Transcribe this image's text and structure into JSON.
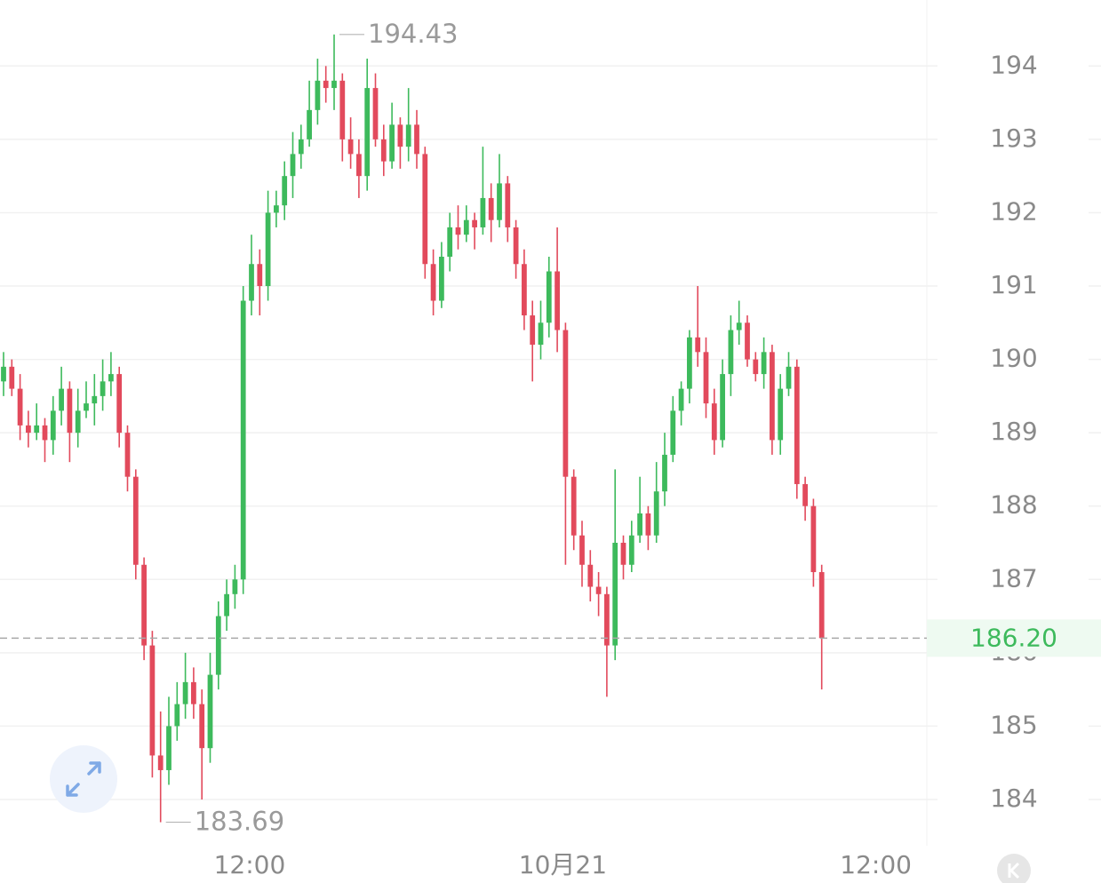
{
  "chart_data": {
    "type": "candlestick",
    "x": [
      0,
      1,
      2,
      3,
      4,
      5,
      6,
      7,
      8,
      9,
      10,
      11,
      12,
      13,
      14,
      15,
      16,
      17,
      18,
      19,
      20,
      21,
      22,
      23,
      24,
      25,
      26,
      27,
      28,
      29,
      30,
      31,
      32,
      33,
      34,
      35,
      36,
      37,
      38,
      39,
      40,
      41,
      42,
      43,
      44,
      45,
      46,
      47,
      48,
      49,
      50,
      51,
      52,
      53,
      54,
      55,
      56,
      57,
      58,
      59,
      60,
      61,
      62,
      63,
      64,
      65,
      66,
      67,
      68,
      69,
      70,
      71,
      72,
      73,
      74,
      75,
      76,
      77,
      78,
      79,
      80,
      81,
      82,
      83,
      84,
      85,
      86,
      87,
      88,
      89,
      90,
      91,
      92,
      93,
      94,
      95,
      96,
      97,
      98,
      99
    ],
    "open": [
      189.7,
      189.9,
      189.6,
      189.1,
      189.0,
      189.1,
      188.9,
      189.3,
      189.6,
      189.0,
      189.3,
      189.4,
      189.5,
      189.7,
      189.8,
      189.0,
      188.4,
      187.2,
      186.1,
      184.6,
      184.4,
      185.0,
      185.3,
      185.6,
      185.3,
      184.7,
      185.7,
      186.5,
      186.8,
      187.0,
      190.8,
      191.3,
      191.0,
      192.0,
      192.1,
      192.5,
      192.8,
      193.0,
      193.4,
      193.8,
      193.7,
      193.8,
      193.0,
      192.8,
      192.5,
      193.7,
      193.0,
      192.7,
      193.2,
      192.9,
      193.2,
      192.8,
      191.3,
      190.8,
      191.4,
      191.8,
      191.7,
      191.9,
      191.8,
      192.2,
      191.9,
      192.4,
      191.8,
      191.3,
      190.6,
      190.2,
      190.5,
      191.2,
      190.4,
      188.4,
      187.6,
      187.2,
      186.9,
      186.8,
      186.1,
      187.5,
      187.2,
      187.6,
      187.9,
      187.6,
      188.2,
      188.7,
      189.3,
      189.6,
      190.3,
      190.1,
      189.4,
      188.9,
      189.8,
      190.4,
      190.5,
      190.0,
      189.8,
      190.1,
      188.9,
      189.6,
      189.9,
      188.3,
      188.0,
      187.1
    ],
    "high": [
      190.1,
      190.0,
      189.8,
      189.3,
      189.4,
      189.2,
      189.5,
      189.9,
      189.7,
      189.6,
      189.7,
      189.8,
      190.0,
      190.1,
      189.9,
      189.1,
      188.5,
      187.3,
      186.3,
      185.2,
      185.4,
      185.6,
      186.0,
      185.8,
      185.5,
      186.0,
      186.7,
      187.0,
      187.2,
      191.0,
      191.7,
      191.5,
      192.3,
      192.3,
      192.7,
      193.1,
      193.2,
      193.8,
      194.1,
      194.0,
      194.43,
      193.9,
      193.3,
      193.0,
      194.1,
      193.9,
      193.2,
      193.5,
      193.3,
      193.7,
      193.4,
      192.9,
      191.5,
      191.6,
      192.0,
      192.1,
      192.1,
      192.0,
      192.9,
      192.4,
      192.8,
      192.5,
      191.9,
      191.5,
      190.8,
      190.8,
      191.4,
      191.8,
      190.5,
      188.5,
      187.8,
      187.4,
      187.1,
      186.9,
      188.5,
      187.6,
      187.8,
      188.4,
      188.0,
      188.6,
      189.0,
      189.5,
      189.7,
      190.4,
      191.0,
      190.3,
      189.6,
      190.0,
      190.6,
      190.8,
      190.6,
      190.1,
      190.3,
      190.2,
      189.8,
      190.1,
      190.0,
      188.4,
      188.1,
      187.2
    ],
    "low": [
      189.5,
      189.5,
      188.9,
      188.8,
      188.9,
      188.6,
      188.7,
      189.1,
      188.6,
      188.8,
      189.2,
      189.1,
      189.3,
      189.5,
      188.8,
      188.2,
      187.0,
      185.9,
      184.3,
      183.69,
      184.2,
      184.8,
      185.1,
      185.1,
      184.0,
      184.5,
      185.5,
      186.3,
      186.6,
      186.8,
      190.6,
      190.6,
      190.8,
      191.8,
      191.9,
      192.2,
      192.6,
      192.9,
      193.2,
      193.5,
      193.4,
      192.7,
      192.6,
      192.2,
      192.3,
      192.9,
      192.5,
      192.6,
      192.6,
      192.7,
      192.6,
      191.1,
      190.6,
      190.7,
      191.2,
      191.5,
      191.6,
      191.5,
      191.7,
      191.6,
      191.8,
      191.6,
      191.1,
      190.4,
      189.7,
      190.0,
      190.3,
      190.1,
      187.2,
      187.4,
      186.9,
      186.7,
      186.5,
      185.4,
      185.9,
      187.0,
      187.1,
      187.5,
      187.4,
      187.5,
      188.0,
      188.6,
      189.1,
      189.4,
      189.9,
      189.2,
      188.7,
      188.8,
      189.5,
      190.2,
      189.9,
      189.7,
      189.6,
      188.7,
      188.7,
      189.5,
      188.1,
      187.8,
      186.9,
      185.5
    ],
    "close": [
      189.9,
      189.6,
      189.1,
      189.0,
      189.1,
      188.9,
      189.3,
      189.6,
      189.0,
      189.3,
      189.4,
      189.5,
      189.7,
      189.8,
      189.0,
      188.4,
      187.2,
      186.1,
      184.6,
      184.4,
      185.0,
      185.3,
      185.6,
      185.3,
      184.7,
      185.7,
      186.5,
      186.8,
      187.0,
      190.8,
      191.3,
      191.0,
      192.0,
      192.1,
      192.5,
      192.8,
      193.0,
      193.4,
      193.8,
      193.7,
      193.8,
      193.0,
      192.8,
      192.5,
      193.7,
      193.0,
      192.7,
      193.2,
      192.9,
      193.2,
      192.8,
      191.3,
      190.8,
      191.4,
      191.8,
      191.7,
      191.9,
      191.8,
      192.2,
      191.9,
      192.4,
      191.8,
      191.3,
      190.6,
      190.2,
      190.5,
      191.2,
      190.4,
      188.4,
      187.6,
      187.2,
      186.9,
      186.8,
      186.1,
      187.5,
      187.2,
      187.6,
      187.9,
      187.6,
      188.2,
      188.7,
      189.3,
      189.6,
      190.3,
      190.1,
      189.4,
      188.9,
      189.8,
      190.4,
      190.5,
      190.0,
      189.8,
      190.1,
      188.9,
      189.6,
      189.9,
      188.3,
      188.0,
      187.1,
      186.2
    ],
    "up_color": "#3dba5c",
    "down_color": "#e24a5c",
    "xlim": [
      -0.43,
      111.72
    ],
    "xticks": [
      {
        "value": 29.78,
        "label": "12:00"
      },
      {
        "value": 67.68,
        "label": "10月21"
      },
      {
        "value": 105.55,
        "label": "12:00"
      }
    ],
    "ylim": [
      183.37,
      194.9
    ],
    "yticks": [
      184,
      185,
      186,
      187,
      188,
      189,
      190,
      191,
      192,
      193,
      194
    ],
    "grid": true,
    "max_label": {
      "value": 194.43,
      "label": "194.43"
    },
    "min_label": {
      "value": 183.69,
      "label": "183.69"
    },
    "last_price": {
      "value": 186.2,
      "label": "186.20"
    }
  }
}
